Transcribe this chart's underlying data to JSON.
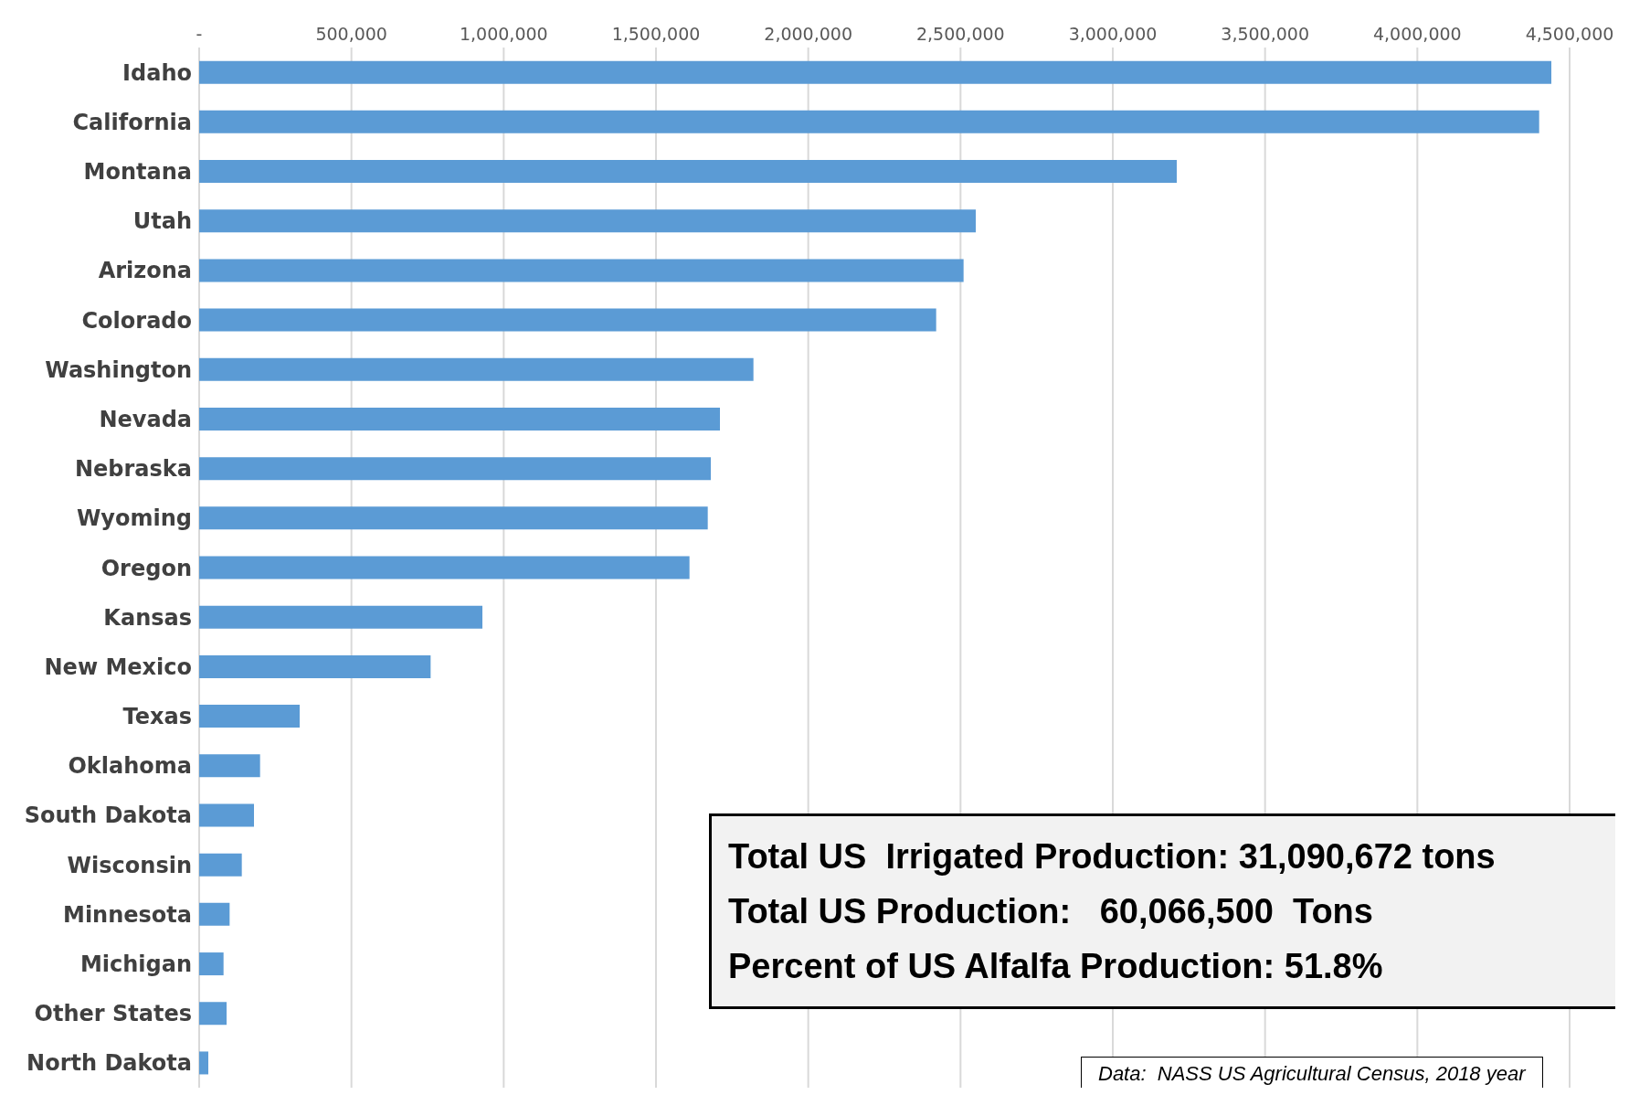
{
  "chart_data": {
    "type": "bar",
    "orientation": "horizontal",
    "categories": [
      "Idaho",
      "California",
      "Montana",
      "Utah",
      "Arizona",
      "Colorado",
      "Washington",
      "Nevada",
      "Nebraska",
      "Wyoming",
      "Oregon",
      "Kansas",
      "New Mexico",
      "Texas",
      "Oklahoma",
      "South Dakota",
      "Wisconsin",
      "Minnesota",
      "Michigan",
      "Other States",
      "North Dakota"
    ],
    "values": [
      4440000,
      4400000,
      3210000,
      2550000,
      2510000,
      2420000,
      1820000,
      1710000,
      1680000,
      1670000,
      1610000,
      930000,
      760000,
      330000,
      200000,
      180000,
      140000,
      100000,
      80000,
      90000,
      30000
    ],
    "color": "#5b9bd5",
    "xlim": [
      0,
      4500000
    ],
    "xticks": [
      {
        "value": 0,
        "label": "-"
      },
      {
        "value": 500000,
        "label": "500,000"
      },
      {
        "value": 1000000,
        "label": "1,000,000"
      },
      {
        "value": 1500000,
        "label": "1,500,000"
      },
      {
        "value": 2000000,
        "label": "2,000,000"
      },
      {
        "value": 2500000,
        "label": "2,500,000"
      },
      {
        "value": 3000000,
        "label": "3,000,000"
      },
      {
        "value": 3500000,
        "label": "3,500,000"
      },
      {
        "value": 4000000,
        "label": "4,000,000"
      },
      {
        "value": 4500000,
        "label": "4,500,000"
      }
    ],
    "grid": "x",
    "annotations": [
      "Total US  Irrigated Production: 31,090,672 tons",
      "Total US Production:   60,066,500  Tons",
      "Percent of US Alfalfa Production: 51.8%",
      "Data:  NASS US Agricultural Census, 2018 year"
    ]
  }
}
